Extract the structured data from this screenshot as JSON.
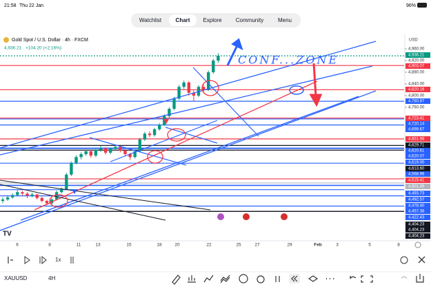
{
  "status_bar": {
    "time": "21:58",
    "date": "Thu 22 Jan",
    "battery": "96%"
  },
  "nav": {
    "tabs": [
      "Watchlist",
      "Chart",
      "Explore",
      "Community",
      "Menu"
    ],
    "active": 1
  },
  "chart_header": {
    "symbol_title": "Gold Spot / U.S. Dollar · 4h · FXCM",
    "price": "4,936.21",
    "change": "+104.20 (+2.16%)"
  },
  "currency": "USD",
  "annotation": "CONF...ZONE",
  "price_axis": {
    "ticks": [
      {
        "value": 4960,
        "label": "4,960.00"
      },
      {
        "value": 4920,
        "label": "4,920.00"
      },
      {
        "value": 4880,
        "label": "4,880.00"
      },
      {
        "value": 4840,
        "label": "4,840.00"
      },
      {
        "value": 4800,
        "label": "4,800.00"
      },
      {
        "value": 4760,
        "label": "4,760.00"
      }
    ]
  },
  "levels": [
    {
      "value": 4936.21,
      "label": "4,936.21",
      "color": "#089981"
    },
    {
      "value": 4903.07,
      "label": "4,903.07",
      "color": "#f23645"
    },
    {
      "value": 4820.16,
      "label": "4,820.16",
      "color": "#f23645"
    },
    {
      "value": 4780.87,
      "label": "4,780.87",
      "color": "#2962ff"
    },
    {
      "value": 4723.41,
      "label": "4,723.41",
      "color": "#f23645"
    },
    {
      "value": 4720.14,
      "label": "4,720.14",
      "color": "#2962ff"
    },
    {
      "value": 4699.67,
      "label": "4,699.67",
      "color": "#2962ff"
    },
    {
      "value": 4651.98,
      "label": "4,651.98",
      "color": "#f23645"
    },
    {
      "value": 4629.71,
      "label": "4,629.71",
      "color": "#131722"
    },
    {
      "value": 4620.61,
      "label": "4,620.61",
      "color": "#2962ff"
    },
    {
      "value": 4620.07,
      "label": "4,620.07",
      "color": "#2962ff"
    },
    {
      "value": 4619,
      "label": "4,619.00",
      "color": "#2962ff"
    },
    {
      "value": 4613.6,
      "label": "4,613.60",
      "color": "#131722"
    },
    {
      "value": 4568.96,
      "label": "4,568.96",
      "color": "#2962ff"
    },
    {
      "value": 4515.41,
      "label": "4,515.41",
      "color": "#f23645"
    },
    {
      "value": 4501.35,
      "label": "4,501.35",
      "color": "#b2b5be"
    },
    {
      "value": 4493.73,
      "label": "4,493.73",
      "color": "#2962ff"
    },
    {
      "value": 4492.57,
      "label": "4,492.57",
      "color": "#2962ff"
    },
    {
      "value": 4478.4,
      "label": "4,478.40",
      "color": "#2962ff"
    },
    {
      "value": 4457.38,
      "label": "4,457.38",
      "color": "#2962ff"
    },
    {
      "value": 4422.43,
      "label": "4,422.43",
      "color": "#2962ff"
    },
    {
      "value": 4404.23,
      "label": "4,404.23",
      "color": "#131722"
    },
    {
      "value": 4404.23,
      "label": "4,404.23",
      "color": "#131722"
    },
    {
      "value": 4404.23,
      "label": "4,404.23",
      "color": "#131722"
    }
  ],
  "candles": [
    [
      4440,
      4452,
      4432,
      4445
    ],
    [
      4445,
      4458,
      4440,
      4452
    ],
    [
      4452,
      4466,
      4448,
      4460
    ],
    [
      4460,
      4478,
      4455,
      4470
    ],
    [
      4470,
      4474,
      4458,
      4465
    ],
    [
      4465,
      4470,
      4450,
      4458
    ],
    [
      4458,
      4468,
      4452,
      4462
    ],
    [
      4462,
      4464,
      4445,
      4450
    ],
    [
      4450,
      4455,
      4435,
      4440
    ],
    [
      4440,
      4444,
      4425,
      4432
    ],
    [
      4432,
      4450,
      4428,
      4445
    ],
    [
      4445,
      4475,
      4442,
      4470
    ],
    [
      4470,
      4486,
      4466,
      4480
    ],
    [
      4480,
      4536,
      4478,
      4530
    ],
    [
      4530,
      4575,
      4525,
      4570
    ],
    [
      4570,
      4596,
      4565,
      4590
    ],
    [
      4590,
      4606,
      4582,
      4600
    ],
    [
      4600,
      4616,
      4594,
      4610
    ],
    [
      4610,
      4614,
      4588,
      4595
    ],
    [
      4595,
      4620,
      4590,
      4615
    ],
    [
      4615,
      4628,
      4608,
      4620
    ],
    [
      4620,
      4624,
      4598,
      4605
    ],
    [
      4605,
      4622,
      4600,
      4618
    ],
    [
      4618,
      4632,
      4612,
      4625
    ],
    [
      4625,
      4628,
      4606,
      4612
    ],
    [
      4612,
      4616,
      4594,
      4600
    ],
    [
      4600,
      4604,
      4580,
      4590
    ],
    [
      4590,
      4614,
      4585,
      4610
    ],
    [
      4610,
      4656,
      4606,
      4650
    ],
    [
      4650,
      4676,
      4645,
      4670
    ],
    [
      4670,
      4678,
      4658,
      4665
    ],
    [
      4665,
      4690,
      4660,
      4685
    ],
    [
      4685,
      4706,
      4680,
      4700
    ],
    [
      4700,
      4736,
      4696,
      4730
    ],
    [
      4730,
      4760,
      4725,
      4755
    ],
    [
      4755,
      4796,
      4750,
      4790
    ],
    [
      4790,
      4836,
      4785,
      4830
    ],
    [
      4830,
      4852,
      4822,
      4845
    ],
    [
      4845,
      4850,
      4800,
      4810
    ],
    [
      4810,
      4818,
      4780,
      4800
    ],
    [
      4800,
      4836,
      4795,
      4830
    ],
    [
      4830,
      4838,
      4812,
      4820
    ],
    [
      4820,
      4886,
      4816,
      4880
    ],
    [
      4880,
      4926,
      4875,
      4920
    ],
    [
      4920,
      4945,
      4912,
      4936.21
    ]
  ],
  "date_axis": [
    "6",
    "8",
    "11",
    "13",
    "15",
    "18",
    "20",
    "22",
    "25",
    "27",
    "29",
    "Feb",
    "3",
    "5",
    "8"
  ],
  "playback": {
    "speed": "1x"
  },
  "bottom_bar": {
    "ticker": "XAUUSD",
    "timeframe": "4H"
  }
}
